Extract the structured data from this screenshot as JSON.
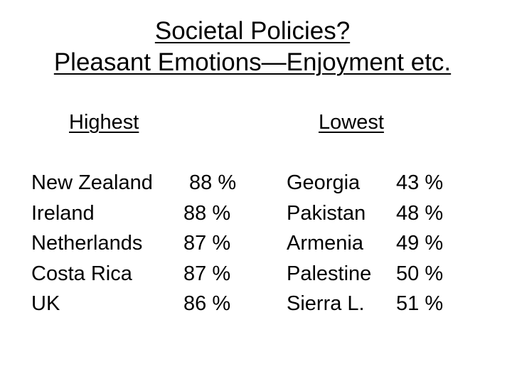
{
  "title": {
    "line1": "Societal Policies?",
    "line2": "Pleasant Emotions—Enjoyment etc."
  },
  "highest": {
    "heading": "Highest",
    "rows": [
      {
        "country": "New Zealand",
        "value": "88 %"
      },
      {
        "country": "Ireland",
        "value": "88 %"
      },
      {
        "country": "Netherlands",
        "value": "87 %"
      },
      {
        "country": "Costa Rica",
        "value": "87 %"
      },
      {
        "country": "UK",
        "value": "86 %"
      }
    ]
  },
  "lowest": {
    "heading": "Lowest",
    "rows": [
      {
        "country": "Georgia",
        "value": "43 %"
      },
      {
        "country": "Pakistan",
        "value": "48 %"
      },
      {
        "country": "Armenia",
        "value": "49 %"
      },
      {
        "country": "Palestine",
        "value": "50 %"
      },
      {
        "country": "Sierra L.",
        "value": "51 %"
      }
    ]
  }
}
